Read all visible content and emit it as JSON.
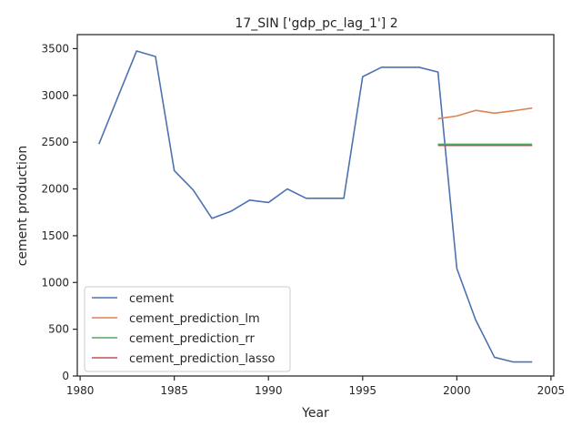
{
  "chart_data": {
    "type": "line",
    "title": "17_SIN ['gdp_pc_lag_1'] 2",
    "xlabel": "Year",
    "ylabel": "cement production",
    "xlim": [
      1979.85,
      2005.15
    ],
    "ylim": [
      0,
      3650
    ],
    "x_ticks": [
      1980,
      1985,
      1990,
      1995,
      2000,
      2005
    ],
    "y_ticks": [
      0,
      500,
      1000,
      1500,
      2000,
      2500,
      3000,
      3500
    ],
    "grid": false,
    "legend_position": "lower-left",
    "series": [
      {
        "name": "cement",
        "color": "#4c72b0",
        "x": [
          1981,
          1982,
          1983,
          1984,
          1985,
          1986,
          1987,
          1988,
          1989,
          1990,
          1991,
          1992,
          1993,
          1994,
          1995,
          1996,
          1997,
          1998,
          1999,
          2000,
          2001,
          2002,
          2003,
          2004
        ],
        "values": [
          2480,
          2980,
          3475,
          3415,
          2195,
          1990,
          1685,
          1760,
          1880,
          1855,
          2000,
          1900,
          1900,
          1900,
          3200,
          3300,
          3300,
          3300,
          3250,
          1150,
          600,
          200,
          150,
          150
        ]
      },
      {
        "name": "cement_prediction_lm",
        "color": "#dd8452",
        "x": [
          1999,
          2000,
          2001,
          2002,
          2003,
          2004
        ],
        "values": [
          2750,
          2780,
          2840,
          2810,
          2835,
          2865
        ]
      },
      {
        "name": "cement_prediction_rr",
        "color": "#55a868",
        "x": [
          1999,
          2000,
          2001,
          2002,
          2003,
          2004
        ],
        "values": [
          2478,
          2478,
          2478,
          2478,
          2478,
          2478
        ]
      },
      {
        "name": "cement_prediction_lasso",
        "color": "#c44e52",
        "x": [
          1999,
          2000,
          2001,
          2002,
          2003,
          2004
        ],
        "values": [
          2465,
          2465,
          2465,
          2465,
          2465,
          2465
        ]
      }
    ]
  }
}
